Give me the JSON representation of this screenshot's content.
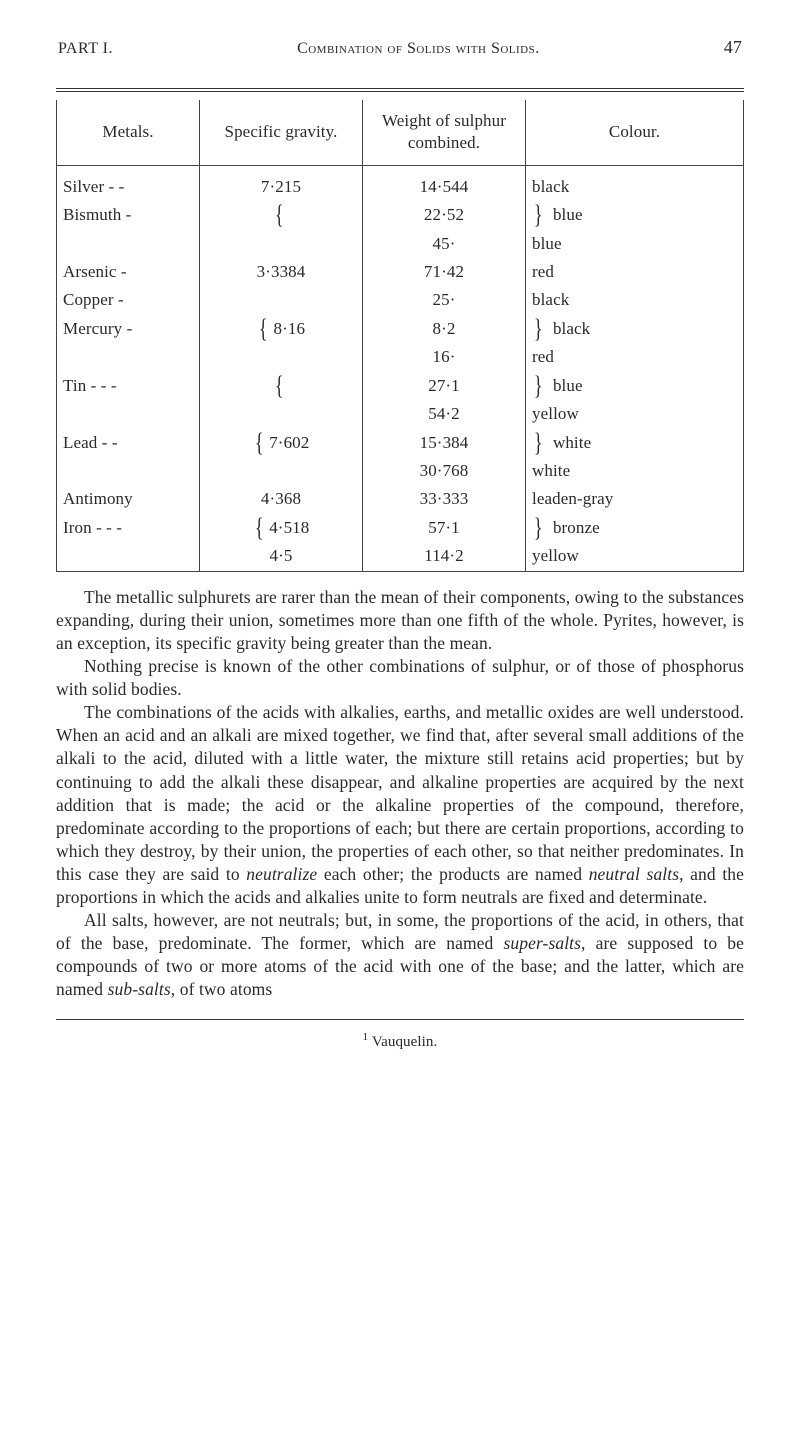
{
  "running_head": {
    "part": "PART I.",
    "title": "Combination of Solids with Solids.",
    "page": "47"
  },
  "table": {
    "headers": {
      "metals": "Metals.",
      "sg": "Specific gravity.",
      "weight": "Weight of sulphur combined.",
      "colour": "Colour."
    },
    "rows": [
      {
        "metal": "Silver  -  -",
        "sg": "7·215",
        "weight": "14·544",
        "colour": "black",
        "brace_l": "",
        "brace_r": ""
      },
      {
        "metal": "Bismuth -",
        "sg": "",
        "weight": "22·52",
        "colour": "blue",
        "brace_l": "{",
        "brace_r": "}"
      },
      {
        "metal": "",
        "sg": "",
        "weight": "45·",
        "colour": "blue",
        "brace_l": "",
        "brace_r": ""
      },
      {
        "metal": "Arsenic  -",
        "sg": "3·3384",
        "weight": "71·42",
        "colour": "red",
        "brace_l": "",
        "brace_r": ""
      },
      {
        "metal": "Copper  -",
        "sg": "",
        "weight": "25·",
        "colour": "black",
        "brace_l": "",
        "brace_r": ""
      },
      {
        "metal": "Mercury -",
        "sg": "8·16",
        "weight": "8·2",
        "colour": "black",
        "brace_l": "{",
        "brace_r": "}"
      },
      {
        "metal": "",
        "sg": "",
        "weight": "16·",
        "colour": "red",
        "brace_l": "",
        "brace_r": ""
      },
      {
        "metal": "Tin  -  -  -",
        "sg": "",
        "weight": "27·1",
        "colour": "blue",
        "brace_l": "{",
        "brace_r": "}"
      },
      {
        "metal": "",
        "sg": "",
        "weight": "54·2",
        "colour": "yellow",
        "brace_l": "",
        "brace_r": ""
      },
      {
        "metal": "Lead  -  -",
        "sg": "7·602",
        "weight": "15·384",
        "colour": "white",
        "brace_l": "{",
        "brace_r": "}"
      },
      {
        "metal": "",
        "sg": "",
        "weight": "30·768",
        "colour": "white",
        "brace_l": "",
        "brace_r": ""
      },
      {
        "metal": "Antimony",
        "sg": "4·368",
        "weight": "33·333",
        "colour": "leaden-gray",
        "brace_l": "",
        "brace_r": ""
      },
      {
        "metal": "Iron  -  -  -",
        "sg": "4·518",
        "weight": "57·1",
        "colour": "bronze",
        "brace_l": "{",
        "brace_r": "}"
      },
      {
        "metal": "",
        "sg": "4·5",
        "weight": "114·2",
        "colour": "yellow",
        "brace_l": "",
        "brace_r": ""
      }
    ]
  },
  "paragraphs": {
    "p1": "The metallic sulphurets are rarer than the mean of their components, owing to the substances expanding, during their union, sometimes more than one fifth of the whole. Pyrites, however, is an exception, its specific gravity being greater than the mean.",
    "p2": "Nothing precise is known of the other combinations of sulphur, or of those of phosphorus with solid bodies.",
    "p3": "The combinations of the acids with alkalies, earths, and metallic oxides are well understood. When an acid and an alkali are mixed together, we find that, after several small additions of the alkali to the acid, diluted with a little water, the mixture still retains acid properties; but by continuing to add the alkali these disappear, and alkaline properties are acquired by the next addition that is made; the acid or the alkaline properties of the compound, therefore, predominate according to the proportions of each; but there are certain proportions, according to which they destroy, by their union, the properties of each other, so that neither predominates. In this case they are said to neutralize each other; the products are named neutral salts, and the proportions in which the acids and alkalies unite to form neutrals are fixed and determinate.",
    "p4": "All salts, however, are not neutrals; but, in some, the proportions of the acid, in others, that of the base, predominate. The former, which are named super-salts, are supposed to be compounds of two or more atoms of the acid with one of the base; and the latter, which are named sub-salts, of two atoms"
  },
  "footnote": "Vauquelin.",
  "footnote_marker": "1"
}
